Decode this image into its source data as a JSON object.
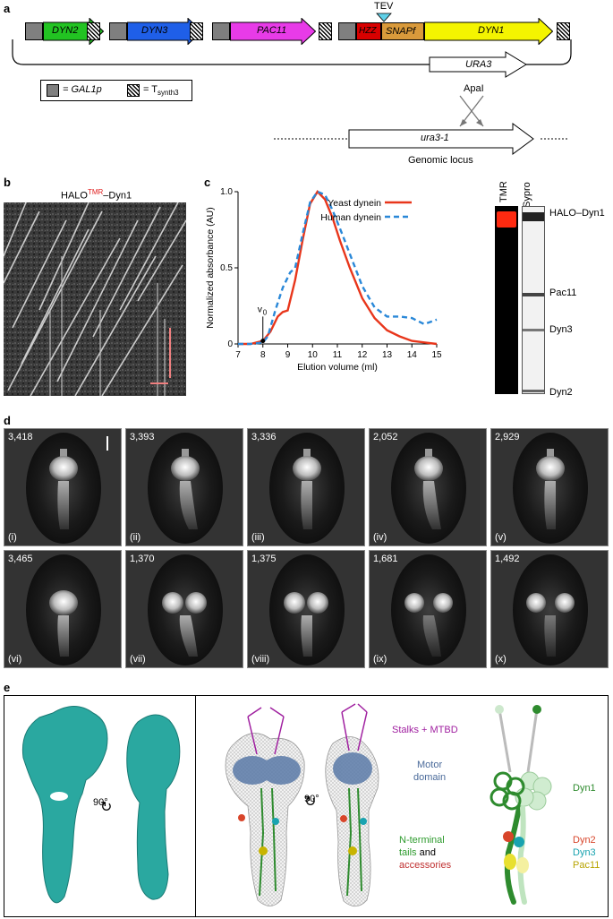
{
  "panels": {
    "a": "a",
    "b": "b",
    "c": "c",
    "d": "d",
    "e": "e"
  },
  "panel_a": {
    "genes": [
      {
        "label": "DYN2",
        "color": "#22c322"
      },
      {
        "label": "DYN3",
        "color": "#1f5fe8"
      },
      {
        "label": "PAC11",
        "color": "#e83be8"
      },
      {
        "label": "HZZ",
        "color": "#d80000"
      },
      {
        "label": "SNAPf",
        "color": "#d99a3b"
      },
      {
        "label": "DYN1",
        "color": "#f4f400"
      }
    ],
    "tev_label": "TEV",
    "ura3_label": "URA3",
    "apai_label": "ApaI",
    "ura3_1_label": "ura3-1",
    "genomic_locus_label": "Genomic locus",
    "legend": {
      "gal1p_text": "= GAL1p",
      "tsynth_text": "= T",
      "tsynth_sub": "synth3"
    }
  },
  "panel_b": {
    "title_prefix": "HALO",
    "title_sup": "TMR",
    "title_suffix": "–Dyn1"
  },
  "panel_c": {
    "legend": [
      "Yeast dynein",
      "Human dynein"
    ],
    "v0_label": "v",
    "v0_sub": "0",
    "gel_lanes": [
      "TMR",
      "Sypro"
    ],
    "gel_bands": [
      "HALO–Dyn1",
      "Pac11",
      "Dyn3",
      "Dyn2"
    ]
  },
  "chart_data": {
    "type": "line",
    "xlabel": "Elution volume (ml)",
    "ylabel": "Normalized absorbance (AU)",
    "xlim": [
      7,
      15
    ],
    "ylim": [
      0,
      1.0
    ],
    "xticks": [
      7,
      8,
      9,
      10,
      11,
      12,
      13,
      14,
      15
    ],
    "yticks": [
      0,
      0.5,
      1.0
    ],
    "series": [
      {
        "name": "Yeast dynein",
        "color": "#e8361b",
        "style": "solid",
        "x": [
          7.0,
          7.5,
          8.0,
          8.3,
          8.6,
          8.8,
          9.0,
          9.3,
          9.6,
          9.9,
          10.2,
          10.5,
          10.8,
          11.1,
          11.5,
          12.0,
          12.5,
          13.0,
          13.5,
          14.0,
          14.5,
          15.0
        ],
        "y": [
          0.0,
          0.0,
          0.02,
          0.08,
          0.18,
          0.21,
          0.22,
          0.42,
          0.68,
          0.92,
          1.0,
          0.95,
          0.83,
          0.68,
          0.5,
          0.3,
          0.17,
          0.09,
          0.05,
          0.02,
          0.01,
          0.0
        ]
      },
      {
        "name": "Human dynein",
        "color": "#2a88d8",
        "style": "dashed",
        "x": [
          7.0,
          7.5,
          8.0,
          8.2,
          8.5,
          8.8,
          9.1,
          9.3,
          9.6,
          9.9,
          10.2,
          10.5,
          10.8,
          11.2,
          11.6,
          12.0,
          12.5,
          13.0,
          13.5,
          14.0,
          14.5,
          15.0
        ],
        "y": [
          0.0,
          0.0,
          0.01,
          0.05,
          0.22,
          0.37,
          0.47,
          0.5,
          0.72,
          0.93,
          1.0,
          0.98,
          0.88,
          0.72,
          0.55,
          0.38,
          0.24,
          0.18,
          0.18,
          0.17,
          0.13,
          0.16
        ]
      }
    ]
  },
  "panel_d": {
    "cells": [
      {
        "count": "3,418",
        "roman": "(i)"
      },
      {
        "count": "3,393",
        "roman": "(ii)"
      },
      {
        "count": "3,336",
        "roman": "(iii)"
      },
      {
        "count": "2,052",
        "roman": "(iv)"
      },
      {
        "count": "2,929",
        "roman": "(v)"
      },
      {
        "count": "3,465",
        "roman": "(vi)"
      },
      {
        "count": "1,370",
        "roman": "(vii)"
      },
      {
        "count": "1,375",
        "roman": "(viii)"
      },
      {
        "count": "1,681",
        "roman": "(ix)"
      },
      {
        "count": "1,492",
        "roman": "(x)"
      }
    ]
  },
  "panel_e": {
    "rotation_label": "90°",
    "stalks_label": "Stalks + MTBD",
    "motor_label_1": "Motor",
    "motor_label_2": "domain",
    "nterm_label_1": "N-terminal",
    "nterm_label_2": "tails",
    "nterm_label_3": "and",
    "nterm_label_4": "accessories",
    "schematic_labels": [
      "Dyn1",
      "Dyn2",
      "Dyn3",
      "Pac11"
    ]
  },
  "colors": {
    "teal_surface": "#2aa8a0",
    "dyn1_green": "#2e8b2e",
    "dyn2_red": "#d8452a",
    "dyn3_teal": "#19a3b0",
    "pac11_yellow": "#c8b400"
  }
}
